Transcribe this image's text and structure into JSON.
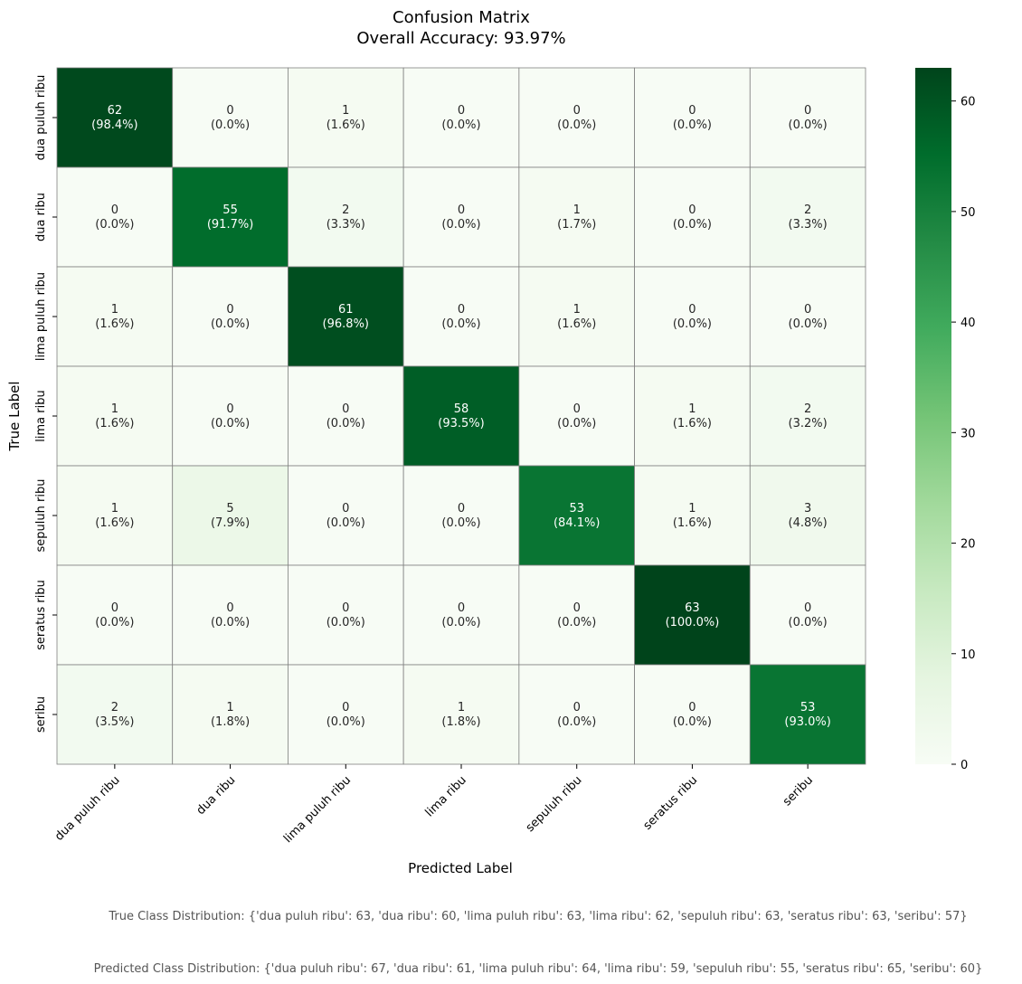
{
  "chart_data": {
    "type": "heatmap",
    "title": "Confusion Matrix",
    "subtitle": "Overall Accuracy: 93.97%",
    "xlabel": "Predicted Label",
    "ylabel": "True Label",
    "x_categories": [
      "dua puluh ribu",
      "dua ribu",
      "lima puluh ribu",
      "lima ribu",
      "sepuluh ribu",
      "seratus ribu",
      "seribu"
    ],
    "y_categories": [
      "dua puluh ribu",
      "dua ribu",
      "lima puluh ribu",
      "lima ribu",
      "sepuluh ribu",
      "seratus ribu",
      "seribu"
    ],
    "values": [
      [
        62,
        0,
        1,
        0,
        0,
        0,
        0
      ],
      [
        0,
        55,
        2,
        0,
        1,
        0,
        2
      ],
      [
        1,
        0,
        61,
        0,
        1,
        0,
        0
      ],
      [
        1,
        0,
        0,
        58,
        0,
        1,
        2
      ],
      [
        1,
        5,
        0,
        0,
        53,
        1,
        3
      ],
      [
        0,
        0,
        0,
        0,
        0,
        63,
        0
      ],
      [
        2,
        1,
        0,
        1,
        0,
        0,
        53
      ]
    ],
    "percentages": [
      [
        "98.4%",
        "0.0%",
        "1.6%",
        "0.0%",
        "0.0%",
        "0.0%",
        "0.0%"
      ],
      [
        "0.0%",
        "91.7%",
        "3.3%",
        "0.0%",
        "1.7%",
        "0.0%",
        "3.3%"
      ],
      [
        "1.6%",
        "0.0%",
        "96.8%",
        "0.0%",
        "1.6%",
        "0.0%",
        "0.0%"
      ],
      [
        "1.6%",
        "0.0%",
        "0.0%",
        "93.5%",
        "0.0%",
        "1.6%",
        "3.2%"
      ],
      [
        "1.6%",
        "7.9%",
        "0.0%",
        "0.0%",
        "84.1%",
        "1.6%",
        "4.8%"
      ],
      [
        "0.0%",
        "0.0%",
        "0.0%",
        "0.0%",
        "0.0%",
        "100.0%",
        "0.0%"
      ],
      [
        "3.5%",
        "1.8%",
        "0.0%",
        "1.8%",
        "0.0%",
        "0.0%",
        "93.0%"
      ]
    ],
    "colorscale": "Greens",
    "colors": [
      "#f7fcf5",
      "#e5f5e0",
      "#c7e9c0",
      "#a1d99b",
      "#74c476",
      "#41ab5d",
      "#238b45",
      "#006d2c",
      "#00441b"
    ],
    "colorbar": {
      "min": 0,
      "max": 63,
      "ticks": [
        0,
        10,
        20,
        30,
        40,
        50,
        60
      ]
    },
    "grid_color": "#808080"
  },
  "footer": {
    "true_distribution": "True Class Distribution: {'dua puluh ribu': 63, 'dua ribu': 60, 'lima puluh ribu': 63, 'lima ribu': 62, 'sepuluh ribu': 63, 'seratus ribu': 63, 'seribu': 57}",
    "predicted_distribution": "Predicted Class Distribution: {'dua puluh ribu': 67, 'dua ribu': 61, 'lima puluh ribu': 64, 'lima ribu': 59, 'sepuluh ribu': 55, 'seratus ribu': 65, 'seribu': 60}"
  }
}
